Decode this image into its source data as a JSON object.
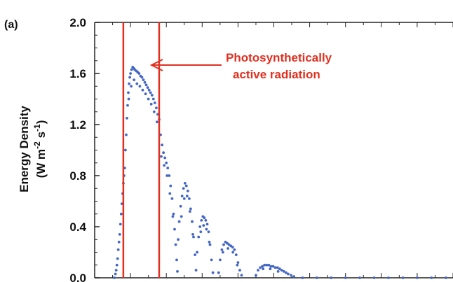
{
  "chart_data": {
    "type": "scatter",
    "panel_label": "(a)",
    "title": "",
    "xlabel": "",
    "ylabel_line1": "Energy Density",
    "ylabel_line2_parts": [
      "(W m",
      "-2",
      " s",
      "-1",
      ")"
    ],
    "ylim": [
      0.0,
      2.0
    ],
    "xlim": [
      0,
      100
    ],
    "y_ticks": [
      "0.0",
      "0.4",
      "0.8",
      "1.2",
      "1.6",
      "2.0"
    ],
    "grid": false,
    "marker_color": "#4466c4",
    "annotation": {
      "line1": "Photosynthetically",
      "line2": "active radiation",
      "color": "#e03020"
    },
    "par_band_x": [
      8,
      18
    ],
    "series": [
      {
        "points": [
          [
            5.5,
            0.0
          ],
          [
            5.8,
            0.03
          ],
          [
            6.0,
            0.06
          ],
          [
            6.2,
            0.1
          ],
          [
            6.4,
            0.15
          ],
          [
            6.6,
            0.22
          ],
          [
            6.8,
            0.28
          ],
          [
            7.0,
            0.34
          ],
          [
            7.2,
            0.42
          ],
          [
            7.4,
            0.5
          ],
          [
            7.6,
            0.58
          ],
          [
            7.8,
            0.66
          ],
          [
            8.0,
            0.74
          ],
          [
            8.2,
            0.8
          ],
          [
            8.4,
            0.86
          ],
          [
            8.6,
            1.0
          ],
          [
            8.8,
            1.12
          ],
          [
            9.0,
            1.25
          ],
          [
            9.2,
            1.35
          ],
          [
            9.4,
            1.45
          ],
          [
            9.6,
            1.52
          ],
          [
            9.8,
            1.57
          ],
          [
            10.0,
            1.6
          ],
          [
            10.3,
            1.63
          ],
          [
            10.6,
            1.65
          ],
          [
            10.9,
            1.64
          ],
          [
            11.2,
            1.63
          ],
          [
            11.6,
            1.62
          ],
          [
            12.0,
            1.61
          ],
          [
            12.4,
            1.6
          ],
          [
            12.8,
            1.58
          ],
          [
            13.2,
            1.57
          ],
          [
            13.6,
            1.55
          ],
          [
            14.0,
            1.53
          ],
          [
            14.4,
            1.51
          ],
          [
            14.8,
            1.49
          ],
          [
            15.2,
            1.47
          ],
          [
            15.6,
            1.45
          ],
          [
            16.0,
            1.43
          ],
          [
            16.4,
            1.4
          ],
          [
            16.8,
            1.37
          ],
          [
            17.2,
            1.33
          ],
          [
            17.6,
            1.28
          ],
          [
            18.0,
            1.24
          ],
          [
            9.5,
            1.4
          ],
          [
            10.2,
            1.5
          ],
          [
            11.0,
            1.55
          ],
          [
            11.8,
            1.52
          ],
          [
            12.6,
            1.5
          ],
          [
            13.4,
            1.47
          ],
          [
            14.2,
            1.44
          ],
          [
            15.0,
            1.4
          ],
          [
            15.8,
            1.36
          ],
          [
            16.6,
            1.3
          ],
          [
            17.4,
            1.22
          ],
          [
            18.4,
            1.12
          ],
          [
            18.8,
            1.04
          ],
          [
            19.2,
            0.98
          ],
          [
            19.6,
            0.94
          ],
          [
            20.0,
            0.9
          ],
          [
            20.4,
            0.86
          ],
          [
            20.8,
            0.8
          ],
          [
            21.2,
            0.72
          ],
          [
            21.6,
            0.62
          ],
          [
            22.0,
            0.5
          ],
          [
            22.3,
            0.38
          ],
          [
            22.6,
            0.26
          ],
          [
            22.9,
            0.14
          ],
          [
            23.1,
            0.05
          ],
          [
            18.6,
            0.95
          ],
          [
            19.4,
            0.88
          ],
          [
            20.2,
            0.8
          ],
          [
            21.0,
            0.66
          ],
          [
            21.8,
            0.48
          ],
          [
            23.3,
            0.3
          ],
          [
            23.6,
            0.44
          ],
          [
            24.0,
            0.56
          ],
          [
            24.4,
            0.64
          ],
          [
            24.8,
            0.7
          ],
          [
            25.2,
            0.74
          ],
          [
            25.6,
            0.72
          ],
          [
            26.0,
            0.68
          ],
          [
            26.4,
            0.62
          ],
          [
            26.8,
            0.54
          ],
          [
            27.2,
            0.44
          ],
          [
            27.6,
            0.32
          ],
          [
            28.0,
            0.18
          ],
          [
            28.3,
            0.06
          ],
          [
            24.2,
            0.48
          ],
          [
            25.0,
            0.62
          ],
          [
            25.8,
            0.64
          ],
          [
            26.6,
            0.52
          ],
          [
            27.4,
            0.34
          ],
          [
            28.6,
            0.2
          ],
          [
            29.0,
            0.32
          ],
          [
            29.4,
            0.4
          ],
          [
            29.8,
            0.45
          ],
          [
            30.2,
            0.48
          ],
          [
            30.6,
            0.47
          ],
          [
            31.0,
            0.45
          ],
          [
            31.4,
            0.42
          ],
          [
            31.8,
            0.36
          ],
          [
            32.2,
            0.26
          ],
          [
            32.6,
            0.14
          ],
          [
            33.0,
            0.04
          ],
          [
            29.6,
            0.36
          ],
          [
            30.4,
            0.41
          ],
          [
            31.2,
            0.38
          ],
          [
            32.0,
            0.28
          ],
          [
            34.6,
            0.04
          ],
          [
            35.0,
            0.14
          ],
          [
            35.5,
            0.22
          ],
          [
            36.0,
            0.26
          ],
          [
            36.5,
            0.28
          ],
          [
            37.0,
            0.27
          ],
          [
            37.5,
            0.26
          ],
          [
            38.0,
            0.25
          ],
          [
            38.5,
            0.24
          ],
          [
            39.0,
            0.22
          ],
          [
            39.5,
            0.18
          ],
          [
            40.0,
            0.12
          ],
          [
            40.5,
            0.06
          ],
          [
            41.0,
            0.02
          ],
          [
            35.8,
            0.2
          ],
          [
            37.2,
            0.23
          ],
          [
            38.6,
            0.2
          ],
          [
            39.8,
            0.1
          ],
          [
            45.0,
            0.02
          ],
          [
            45.6,
            0.06
          ],
          [
            46.2,
            0.08
          ],
          [
            46.8,
            0.09
          ],
          [
            47.4,
            0.1
          ],
          [
            48.0,
            0.1
          ],
          [
            48.6,
            0.1
          ],
          [
            49.2,
            0.09
          ],
          [
            49.8,
            0.09
          ],
          [
            50.4,
            0.08
          ],
          [
            51.0,
            0.08
          ],
          [
            51.6,
            0.07
          ],
          [
            52.2,
            0.06
          ],
          [
            52.8,
            0.05
          ],
          [
            53.4,
            0.04
          ],
          [
            54.0,
            0.03
          ],
          [
            54.8,
            0.02
          ],
          [
            55.6,
            0.01
          ],
          [
            47.0,
            0.07
          ],
          [
            49.0,
            0.07
          ],
          [
            51.2,
            0.05
          ],
          [
            58.0,
            0.0
          ],
          [
            62.0,
            0.0
          ],
          [
            66.0,
            0.0
          ],
          [
            70.0,
            0.0
          ],
          [
            74.0,
            0.0
          ],
          [
            78.0,
            0.0
          ],
          [
            82.0,
            0.0
          ],
          [
            86.0,
            0.0
          ],
          [
            90.0,
            0.0
          ],
          [
            94.0,
            0.0
          ],
          [
            98.0,
            0.0
          ]
        ]
      }
    ]
  }
}
